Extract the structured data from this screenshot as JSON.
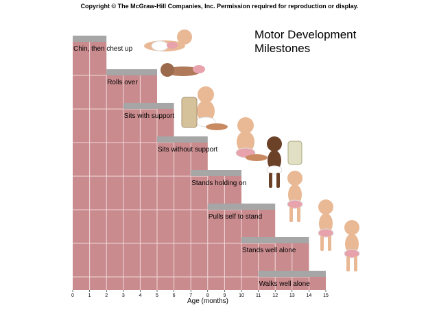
{
  "header": {
    "copyright": "Copyright © The McGraw-Hill Companies, Inc. Permission required for reproduction or display."
  },
  "chart_data": {
    "type": "bar",
    "title_lines": [
      "Motor Development",
      "Milestones"
    ],
    "xlabel": "Age (months)",
    "ylabel": "",
    "xlim": [
      0,
      15
    ],
    "x_ticks": [
      0,
      1,
      2,
      3,
      4,
      5,
      6,
      7,
      8,
      9,
      10,
      11,
      12,
      13,
      14,
      15
    ],
    "grid": true,
    "colors": {
      "bar_fill": "#c98b8e",
      "grid_line": "#f3dadb",
      "range_band": "#a6a6a6"
    },
    "milestones": [
      {
        "label": "Chin, then chest up",
        "start": 0,
        "end": 2
      },
      {
        "label": "Rolls over",
        "start": 2,
        "end": 5
      },
      {
        "label": "Sits with support",
        "start": 3,
        "end": 6
      },
      {
        "label": "Sits without support",
        "start": 5,
        "end": 8
      },
      {
        "label": "Stands holding on",
        "start": 7,
        "end": 10
      },
      {
        "label": "Pulls self to stand",
        "start": 8,
        "end": 12
      },
      {
        "label": "Stands well alone",
        "start": 10,
        "end": 14
      },
      {
        "label": "Walks well alone",
        "start": 11,
        "end": 15
      }
    ]
  }
}
